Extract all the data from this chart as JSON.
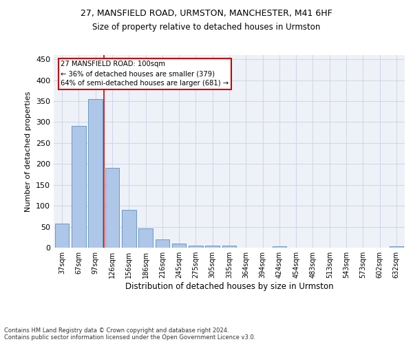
{
  "title1": "27, MANSFIELD ROAD, URMSTON, MANCHESTER, M41 6HF",
  "title2": "Size of property relative to detached houses in Urmston",
  "xlabel": "Distribution of detached houses by size in Urmston",
  "ylabel": "Number of detached properties",
  "footnote": "Contains HM Land Registry data © Crown copyright and database right 2024.\nContains public sector information licensed under the Open Government Licence v3.0.",
  "categories": [
    "37sqm",
    "67sqm",
    "97sqm",
    "126sqm",
    "156sqm",
    "186sqm",
    "216sqm",
    "245sqm",
    "275sqm",
    "305sqm",
    "335sqm",
    "364sqm",
    "394sqm",
    "424sqm",
    "454sqm",
    "483sqm",
    "513sqm",
    "543sqm",
    "573sqm",
    "602sqm",
    "632sqm"
  ],
  "values": [
    58,
    290,
    355,
    191,
    90,
    46,
    19,
    10,
    5,
    5,
    5,
    0,
    0,
    4,
    0,
    0,
    0,
    0,
    0,
    0,
    4
  ],
  "bar_color": "#aec6e8",
  "bar_edge_color": "#5a8fc0",
  "grid_color": "#d0d8e8",
  "background_color": "#eef2f8",
  "vline_x": 2.5,
  "vline_color": "#cc0000",
  "annotation_text": "27 MANSFIELD ROAD: 100sqm\n← 36% of detached houses are smaller (379)\n64% of semi-detached houses are larger (681) →",
  "annotation_box_color": "#cc0000",
  "ylim": [
    0,
    460
  ],
  "yticks": [
    0,
    50,
    100,
    150,
    200,
    250,
    300,
    350,
    400,
    450
  ],
  "figsize": [
    6.0,
    5.0
  ],
  "dpi": 100
}
